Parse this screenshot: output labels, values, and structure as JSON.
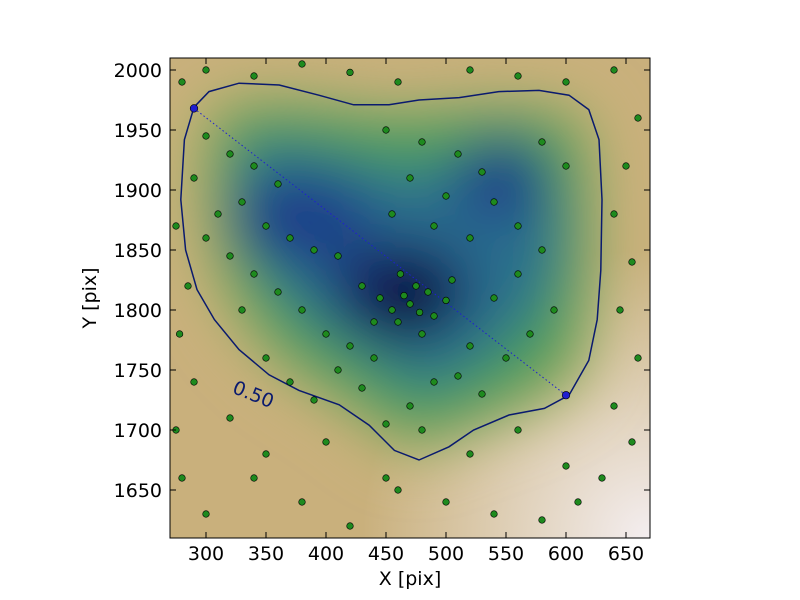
{
  "chart_data": {
    "type": "scatter",
    "x_label": "X [pix]",
    "y_label": "Y [pix]",
    "xlim": [
      270,
      670
    ],
    "ylim": [
      1610,
      2010
    ],
    "xticks": [
      300,
      350,
      400,
      450,
      500,
      550,
      600,
      650
    ],
    "yticks": [
      1650,
      1700,
      1750,
      1800,
      1850,
      1900,
      1950,
      2000
    ],
    "grid": false,
    "points": {
      "color": "#1e8a1e",
      "x": [
        470,
        465,
        478,
        455,
        485,
        460,
        490,
        475,
        445,
        500,
        480,
        440,
        430,
        505,
        462,
        300,
        320,
        340,
        360,
        330,
        310,
        350,
        370,
        390,
        410,
        300,
        320,
        340,
        360,
        380,
        400,
        330,
        350,
        370,
        390,
        410,
        430,
        420,
        440,
        450,
        480,
        510,
        530,
        470,
        500,
        540,
        560,
        520,
        490,
        455,
        580,
        560,
        540,
        590,
        570,
        550,
        520,
        510,
        530,
        490,
        470,
        450,
        480,
        600,
        580,
        280,
        300,
        340,
        380,
        420,
        460,
        520,
        560,
        600,
        640,
        660,
        650,
        640,
        655,
        645,
        660,
        640,
        655,
        630,
        610,
        580,
        540,
        500,
        460,
        420,
        380,
        340,
        300,
        280,
        275,
        290,
        278,
        285,
        275,
        290,
        350,
        400,
        520,
        560,
        320,
        600,
        450
      ],
      "y": [
        1805,
        1812,
        1798,
        1800,
        1815,
        1790,
        1795,
        1820,
        1810,
        1808,
        1780,
        1790,
        1820,
        1825,
        1830,
        1945,
        1930,
        1920,
        1905,
        1890,
        1880,
        1870,
        1860,
        1850,
        1845,
        1860,
        1845,
        1830,
        1815,
        1800,
        1780,
        1800,
        1760,
        1740,
        1725,
        1750,
        1735,
        1770,
        1760,
        1950,
        1940,
        1930,
        1915,
        1910,
        1895,
        1890,
        1870,
        1860,
        1870,
        1880,
        1850,
        1830,
        1810,
        1800,
        1780,
        1760,
        1770,
        1745,
        1730,
        1740,
        1720,
        1705,
        1700,
        1920,
        1940,
        1990,
        2000,
        1995,
        2005,
        1998,
        1990,
        2000,
        1995,
        1990,
        2000,
        1960,
        1920,
        1880,
        1840,
        1800,
        1760,
        1720,
        1690,
        1660,
        1640,
        1625,
        1630,
        1640,
        1650,
        1620,
        1640,
        1660,
        1630,
        1660,
        1700,
        1740,
        1780,
        1820,
        1870,
        1910,
        1680,
        1690,
        1680,
        1700,
        1710,
        1670,
        1660
      ]
    },
    "endpoints": {
      "color": "#1f1fd0",
      "x": [
        290,
        600
      ],
      "y": [
        1968,
        1729
      ]
    },
    "contour": {
      "label": "0.50",
      "color": "#0a1a6e",
      "x": [
        290,
        282,
        279,
        283,
        292.5,
        307,
        327.5,
        352.5,
        377.5,
        411,
        436,
        457,
        477.5,
        502.5,
        523,
        552.5,
        582,
        602.5,
        619,
        626,
        629,
        630,
        627.5,
        619,
        602.5,
        577.5,
        544,
        511,
        477.5,
        452.5,
        423,
        394,
        361,
        327.5,
        302.5,
        290
      ],
      "y": [
        1969,
        1942,
        1892,
        1850,
        1817,
        1792,
        1767,
        1746,
        1733,
        1721,
        1704,
        1683,
        1675,
        1686,
        1700,
        1712.5,
        1718,
        1729,
        1758,
        1792,
        1833,
        1892,
        1942,
        1967,
        1979,
        1983,
        1982,
        1977,
        1975,
        1971,
        1971,
        1979,
        1987.5,
        1989,
        1982,
        1969
      ]
    }
  }
}
